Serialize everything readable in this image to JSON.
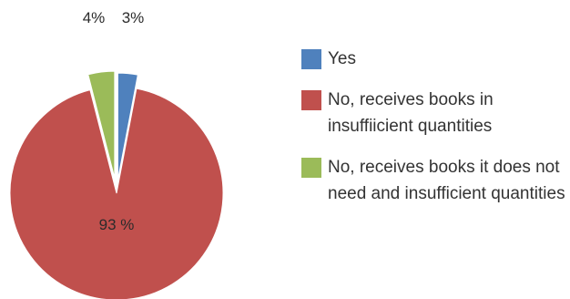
{
  "chart_data": {
    "type": "pie",
    "title": "",
    "slices": [
      {
        "name": "Yes",
        "value": 3,
        "label": "3%",
        "color": "#4F81BD"
      },
      {
        "name": "No, receives books in insuffiicient quantities",
        "value": 93,
        "label": "93 %",
        "color": "#C0504D"
      },
      {
        "name": "No, receives books it does not need and insufficient quantities",
        "value": 4,
        "label": "4%",
        "color": "#9BBB59"
      }
    ],
    "legend_position": "right"
  }
}
